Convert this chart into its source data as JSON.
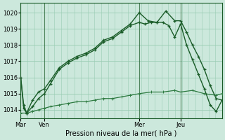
{
  "background_color": "#cce8dc",
  "grid_color": "#99ccb3",
  "line_color_dark": "#1a5c28",
  "line_color_light": "#2d7a40",
  "xlabel": "Pression niveau de la mer( hPa )",
  "ylim": [
    1013.5,
    1020.6
  ],
  "yticks": [
    1014,
    1015,
    1016,
    1017,
    1018,
    1019,
    1020
  ],
  "xtick_labels": [
    "Mar",
    "Ven",
    "Mer",
    "Jeu"
  ],
  "xtick_positions": [
    0,
    8,
    40,
    54
  ],
  "xlim": [
    0,
    68
  ],
  "vlines": [
    0,
    8,
    40,
    54
  ],
  "series1_x": [
    0,
    1,
    2,
    4,
    6,
    8,
    10,
    13,
    16,
    19,
    22,
    25,
    28,
    31,
    34,
    37,
    40,
    43,
    46,
    49,
    52,
    54,
    56,
    58,
    60,
    62,
    64,
    66,
    68
  ],
  "series1_y": [
    1016.0,
    1014.1,
    1013.8,
    1014.6,
    1015.1,
    1015.3,
    1015.8,
    1016.6,
    1017.0,
    1017.3,
    1017.5,
    1017.8,
    1018.3,
    1018.5,
    1018.9,
    1019.3,
    1020.0,
    1019.5,
    1019.4,
    1020.1,
    1019.5,
    1019.5,
    1018.8,
    1018.0,
    1017.3,
    1016.5,
    1015.5,
    1014.7,
    1014.6
  ],
  "series2_x": [
    0,
    1,
    2,
    4,
    6,
    8,
    10,
    13,
    16,
    19,
    22,
    25,
    28,
    31,
    34,
    37,
    40,
    42,
    44,
    46,
    48,
    50,
    52,
    54,
    56,
    58,
    60,
    62,
    64,
    66,
    68
  ],
  "series2_y": [
    1016.0,
    1014.3,
    1013.8,
    1014.2,
    1014.7,
    1015.0,
    1015.6,
    1016.5,
    1016.9,
    1017.2,
    1017.4,
    1017.7,
    1018.2,
    1018.4,
    1018.8,
    1019.2,
    1019.4,
    1019.3,
    1019.4,
    1019.4,
    1019.4,
    1019.2,
    1018.5,
    1019.3,
    1018.0,
    1017.1,
    1016.2,
    1015.3,
    1014.3,
    1013.9,
    1014.6
  ],
  "series3_x": [
    0,
    2,
    4,
    6,
    8,
    10,
    13,
    16,
    19,
    22,
    25,
    28,
    31,
    34,
    37,
    40,
    44,
    48,
    52,
    54,
    58,
    62,
    66,
    68
  ],
  "series3_y": [
    1013.8,
    1013.8,
    1013.9,
    1014.0,
    1014.1,
    1014.2,
    1014.3,
    1014.4,
    1014.5,
    1014.5,
    1014.6,
    1014.7,
    1014.7,
    1014.8,
    1014.9,
    1015.0,
    1015.1,
    1015.1,
    1015.2,
    1015.1,
    1015.2,
    1015.0,
    1014.9,
    1015.0
  ]
}
